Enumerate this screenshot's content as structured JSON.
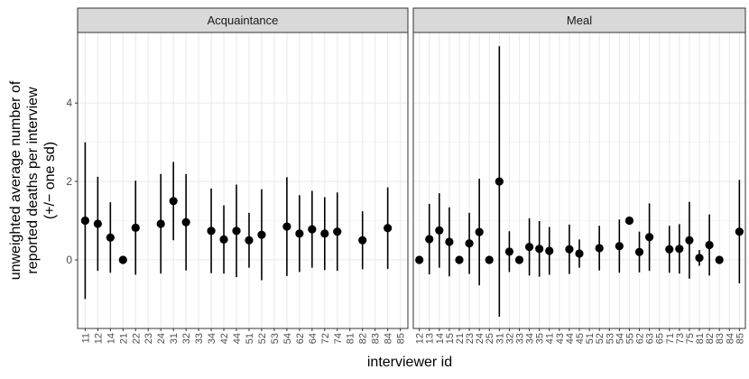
{
  "chart_data": {
    "type": "scatter",
    "subtype": "dot-errorbar-facets",
    "xlabel": "interviewer id",
    "ylabel_lines": [
      "unweighted average number of",
      "reported deaths per interview",
      "(+/− one sd)"
    ],
    "ylim": [
      -1.75,
      5.8
    ],
    "y_ticks": [
      0,
      2,
      4
    ],
    "grid": true,
    "theme": "bw",
    "colors": {
      "points": "#000000",
      "strip_fill": "#d9d9d9",
      "panel_border": "#333333",
      "grid_major": "#ebebeb",
      "grid_minor": "#f5f5f5"
    },
    "facets": [
      {
        "name": "Acquaintance",
        "categories": [
          "11",
          "12",
          "14",
          "21",
          "22",
          "23",
          "24",
          "31",
          "32",
          "33",
          "34",
          "42",
          "44",
          "51",
          "52",
          "53",
          "54",
          "62",
          "64",
          "72",
          "74",
          "81",
          "82",
          "83",
          "84",
          "85"
        ],
        "points": [
          {
            "x": "11",
            "y": 1.0,
            "ymin": -1.0,
            "ymax": 3.0
          },
          {
            "x": "12",
            "y": 0.92,
            "ymin": -0.28,
            "ymax": 2.12
          },
          {
            "x": "14",
            "y": 0.57,
            "ymin": -0.33,
            "ymax": 1.47
          },
          {
            "x": "21",
            "y": 0.0,
            "ymin": 0.0,
            "ymax": 0.0
          },
          {
            "x": "22",
            "y": 0.82,
            "ymin": -0.38,
            "ymax": 2.02
          },
          {
            "x": "24",
            "y": 0.92,
            "ymin": -0.35,
            "ymax": 2.19
          },
          {
            "x": "31",
            "y": 1.5,
            "ymin": 0.5,
            "ymax": 2.5
          },
          {
            "x": "32",
            "y": 0.96,
            "ymin": -0.27,
            "ymax": 2.19
          },
          {
            "x": "34",
            "y": 0.74,
            "ymin": -0.34,
            "ymax": 1.82
          },
          {
            "x": "42",
            "y": 0.52,
            "ymin": -0.35,
            "ymax": 1.39
          },
          {
            "x": "44",
            "y": 0.74,
            "ymin": -0.44,
            "ymax": 1.92
          },
          {
            "x": "51",
            "y": 0.5,
            "ymin": -0.2,
            "ymax": 1.2
          },
          {
            "x": "52",
            "y": 0.64,
            "ymin": -0.52,
            "ymax": 1.8
          },
          {
            "x": "54",
            "y": 0.85,
            "ymin": -0.41,
            "ymax": 2.11
          },
          {
            "x": "62",
            "y": 0.67,
            "ymin": -0.31,
            "ymax": 1.65
          },
          {
            "x": "64",
            "y": 0.78,
            "ymin": -0.2,
            "ymax": 1.76
          },
          {
            "x": "72",
            "y": 0.67,
            "ymin": -0.26,
            "ymax": 1.6
          },
          {
            "x": "74",
            "y": 0.72,
            "ymin": -0.28,
            "ymax": 1.72
          },
          {
            "x": "82",
            "y": 0.5,
            "ymin": -0.24,
            "ymax": 1.24
          },
          {
            "x": "84",
            "y": 0.81,
            "ymin": -0.23,
            "ymax": 1.85
          }
        ]
      },
      {
        "name": "Meal",
        "categories": [
          "12",
          "13",
          "14",
          "15",
          "21",
          "23",
          "24",
          "25",
          "31",
          "32",
          "33",
          "34",
          "35",
          "41",
          "43",
          "44",
          "45",
          "51",
          "52",
          "53",
          "54",
          "55",
          "62",
          "63",
          "65",
          "71",
          "73",
          "75",
          "81",
          "82",
          "83",
          "84",
          "85"
        ],
        "points": [
          {
            "x": "12",
            "y": 0.0,
            "ymin": 0.0,
            "ymax": 0.0
          },
          {
            "x": "13",
            "y": 0.53,
            "ymin": -0.37,
            "ymax": 1.43
          },
          {
            "x": "14",
            "y": 0.75,
            "ymin": -0.2,
            "ymax": 1.7
          },
          {
            "x": "15",
            "y": 0.46,
            "ymin": -0.42,
            "ymax": 1.34
          },
          {
            "x": "21",
            "y": 0.0,
            "ymin": 0.0,
            "ymax": 0.0
          },
          {
            "x": "23",
            "y": 0.42,
            "ymin": -0.36,
            "ymax": 1.2
          },
          {
            "x": "24",
            "y": 0.71,
            "ymin": -0.65,
            "ymax": 2.07
          },
          {
            "x": "25",
            "y": 0.0,
            "ymin": 0.0,
            "ymax": 0.0
          },
          {
            "x": "31",
            "y": 2.0,
            "ymin": -1.45,
            "ymax": 5.45
          },
          {
            "x": "32",
            "y": 0.21,
            "ymin": -0.31,
            "ymax": 0.73
          },
          {
            "x": "33",
            "y": 0.0,
            "ymin": 0.0,
            "ymax": 0.0
          },
          {
            "x": "34",
            "y": 0.33,
            "ymin": -0.4,
            "ymax": 1.06
          },
          {
            "x": "35",
            "y": 0.28,
            "ymin": -0.43,
            "ymax": 0.99
          },
          {
            "x": "41",
            "y": 0.23,
            "ymin": -0.38,
            "ymax": 0.84
          },
          {
            "x": "44",
            "y": 0.27,
            "ymin": -0.36,
            "ymax": 0.9
          },
          {
            "x": "45",
            "y": 0.16,
            "ymin": -0.2,
            "ymax": 0.52
          },
          {
            "x": "52",
            "y": 0.3,
            "ymin": -0.27,
            "ymax": 0.87
          },
          {
            "x": "54",
            "y": 0.35,
            "ymin": -0.33,
            "ymax": 1.03
          },
          {
            "x": "55",
            "y": 1.0,
            "ymin": 1.0,
            "ymax": 1.0
          },
          {
            "x": "62",
            "y": 0.2,
            "ymin": -0.32,
            "ymax": 0.72
          },
          {
            "x": "63",
            "y": 0.58,
            "ymin": -0.28,
            "ymax": 1.44
          },
          {
            "x": "71",
            "y": 0.27,
            "ymin": -0.33,
            "ymax": 0.87
          },
          {
            "x": "73",
            "y": 0.28,
            "ymin": -0.35,
            "ymax": 0.91
          },
          {
            "x": "75",
            "y": 0.5,
            "ymin": -0.48,
            "ymax": 1.48
          },
          {
            "x": "81",
            "y": 0.05,
            "ymin": -0.15,
            "ymax": 0.25
          },
          {
            "x": "82",
            "y": 0.38,
            "ymin": -0.4,
            "ymax": 1.16
          },
          {
            "x": "83",
            "y": 0.0,
            "ymin": 0.0,
            "ymax": 0.0
          },
          {
            "x": "85",
            "y": 0.72,
            "ymin": -0.6,
            "ymax": 2.04
          }
        ]
      }
    ]
  }
}
